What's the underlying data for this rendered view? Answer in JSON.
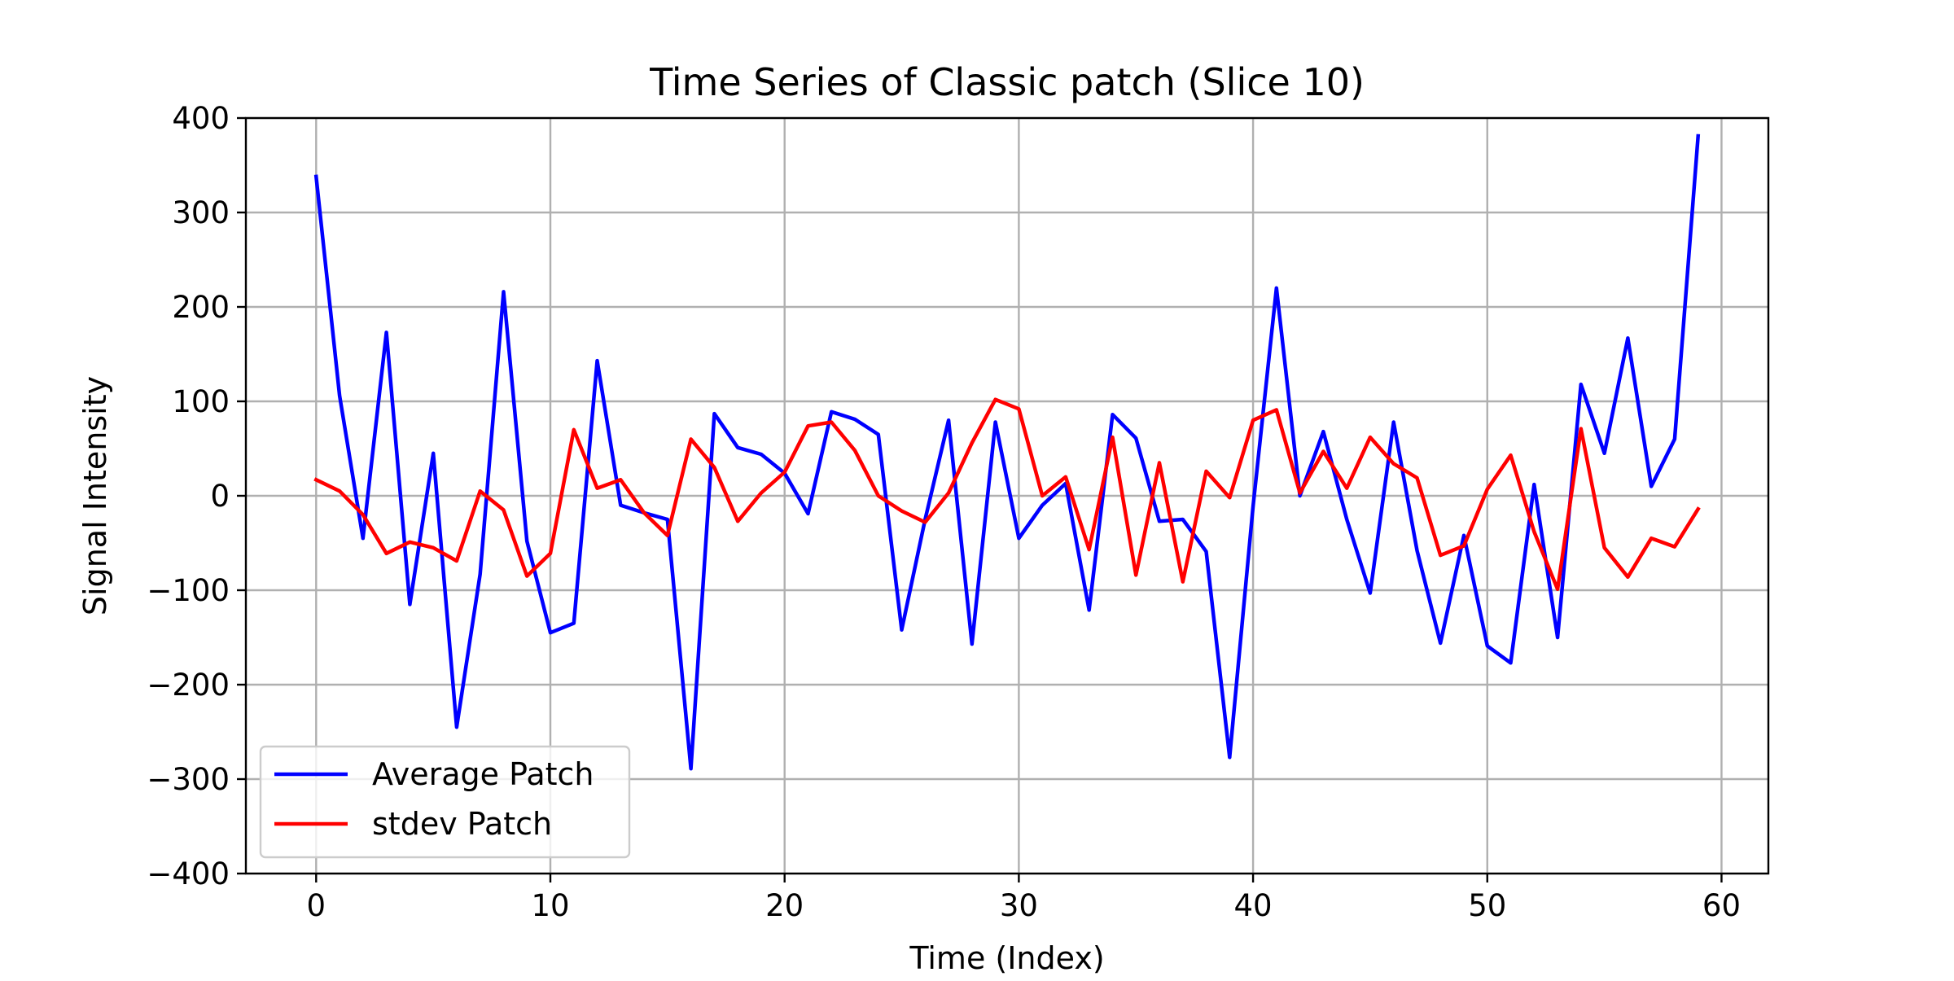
{
  "chart_data": {
    "type": "line",
    "title": "Time Series of Classic patch (Slice 10)",
    "xlabel": "Time (Index)",
    "ylabel": "Signal Intensity",
    "xlim": [
      -3,
      62
    ],
    "ylim": [
      -400,
      400
    ],
    "xticks": [
      0,
      10,
      20,
      30,
      40,
      50,
      60
    ],
    "yticks": [
      -400,
      -300,
      -200,
      -100,
      0,
      100,
      200,
      300,
      400
    ],
    "xtick_labels": [
      "0",
      "10",
      "20",
      "30",
      "40",
      "50",
      "60"
    ],
    "ytick_labels": [
      "−400",
      "−300",
      "−200",
      "−100",
      "0",
      "100",
      "200",
      "300",
      "400"
    ],
    "grid": true,
    "legend_position": "lower-left",
    "x": [
      0,
      1,
      2,
      3,
      4,
      5,
      6,
      7,
      8,
      9,
      10,
      11,
      12,
      13,
      14,
      15,
      16,
      17,
      18,
      19,
      20,
      21,
      22,
      23,
      24,
      25,
      26,
      27,
      28,
      29,
      30,
      31,
      32,
      33,
      34,
      35,
      36,
      37,
      38,
      39,
      40,
      41,
      42,
      43,
      44,
      45,
      46,
      47,
      48,
      49,
      50,
      51,
      52,
      53,
      54,
      55,
      56,
      57,
      58,
      59
    ],
    "series": [
      {
        "name": "Average Patch",
        "color": "#0000ff",
        "values": [
          338,
          106,
          -45,
          173,
          -115,
          45,
          -245,
          -83,
          216,
          -48,
          -145,
          -135,
          143,
          -10,
          -18,
          -25,
          -289,
          87,
          51,
          44,
          24,
          -19,
          89,
          81,
          65,
          -142,
          -25,
          80,
          -157,
          78,
          -45,
          -10,
          13,
          -121,
          86,
          61,
          -27,
          -25,
          -59,
          -277,
          -11,
          220,
          0,
          68,
          -25,
          -103,
          78,
          -58,
          -156,
          -42,
          -159,
          -177,
          12,
          -150,
          118,
          45,
          167,
          10,
          60,
          381
        ]
      },
      {
        "name": "stdev Patch",
        "color": "#ff0000",
        "values": [
          17,
          5,
          -20,
          -61,
          -49,
          -55,
          -69,
          5,
          -15,
          -85,
          -61,
          70,
          8,
          17,
          -18,
          -42,
          60,
          30,
          -27,
          3,
          25,
          74,
          78,
          48,
          0,
          -16,
          -28,
          3,
          56,
          102,
          92,
          0,
          20,
          -57,
          62,
          -84,
          35,
          -91,
          26,
          -2,
          80,
          91,
          3,
          47,
          8,
          62,
          34,
          19,
          -63,
          -53,
          7,
          43,
          -38,
          -99,
          71,
          -55,
          -86,
          -45,
          -54,
          -14
        ]
      }
    ]
  }
}
